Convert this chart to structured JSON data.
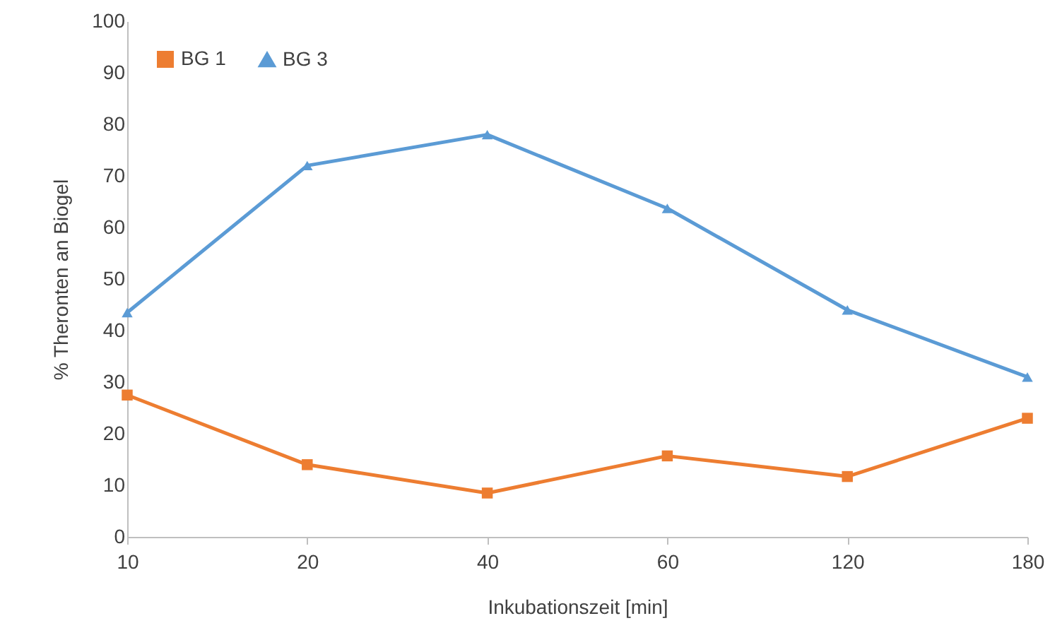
{
  "chart_data": {
    "type": "line",
    "xlabel": "Inkubationszeit [min]",
    "ylabel": "% Theronten an Biogel",
    "categories": [
      "10",
      "20",
      "40",
      "60",
      "120",
      "180"
    ],
    "series": [
      {
        "name": "BG 1",
        "color": "#ed7d31",
        "marker": "square",
        "values": [
          27.5,
          14,
          8.5,
          15.7,
          11.7,
          23
        ]
      },
      {
        "name": "BG 3",
        "color": "#5b9bd5",
        "marker": "triangle",
        "values": [
          43.5,
          72,
          78,
          63.7,
          44,
          31
        ]
      }
    ],
    "ylim": [
      0,
      100
    ],
    "yticks": [
      0,
      10,
      20,
      30,
      40,
      50,
      60,
      70,
      80,
      90,
      100
    ],
    "grid": false,
    "legend": "top left",
    "line_style": "solid"
  }
}
